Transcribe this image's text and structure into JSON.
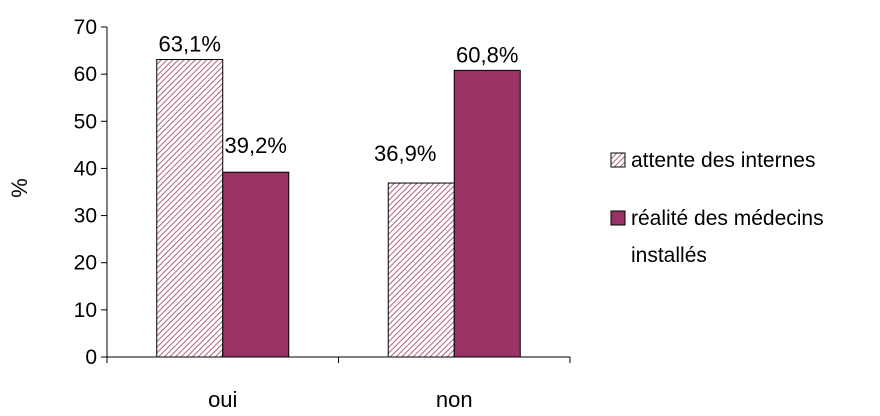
{
  "chart_data": {
    "type": "bar",
    "categories": [
      "oui",
      "non"
    ],
    "series": [
      {
        "name": "attente des internes",
        "values": [
          63.1,
          36.9
        ],
        "labels": [
          "63,1%",
          "36,9%"
        ],
        "color": "#9e3a5e",
        "pattern": "diagonal-hatch"
      },
      {
        "name": "réalité des médecins installés",
        "values": [
          39.2,
          60.8
        ],
        "labels": [
          "39,2%",
          "60,8%"
        ],
        "color": "#993366",
        "pattern": "solid"
      }
    ],
    "title": "",
    "xlabel": "",
    "ylabel": "%",
    "ylim": [
      0,
      70
    ],
    "yticks": [
      "0",
      "10",
      "20",
      "30",
      "40",
      "50",
      "60",
      "70"
    ],
    "grid": false,
    "legend_position": "right"
  },
  "legend": {
    "line1": "attente des internes",
    "line2a": "réalité des médecins",
    "line2b": "installés"
  }
}
